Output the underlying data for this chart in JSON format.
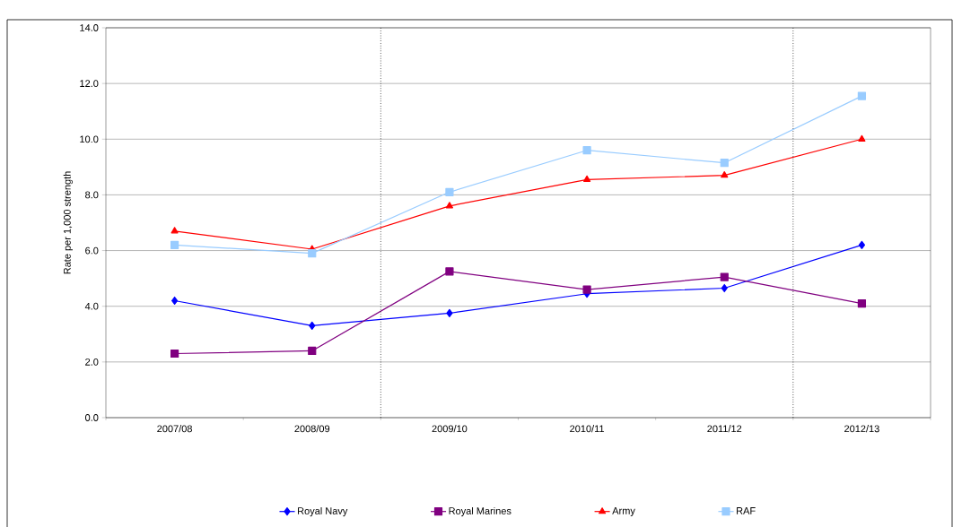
{
  "chart_data": {
    "type": "line",
    "ylabel": "Rate per 1,000 strength",
    "categories": [
      "2007/08",
      "2008/09",
      "2009/10",
      "2010/11",
      "2011/12",
      "2012/13"
    ],
    "series": [
      {
        "name": "Royal Navy",
        "color": "#0000ff",
        "marker": "diamond",
        "values": [
          4.2,
          3.3,
          3.75,
          4.45,
          4.65,
          6.2
        ]
      },
      {
        "name": "Royal Marines",
        "color": "#800080",
        "marker": "square",
        "values": [
          2.3,
          2.4,
          5.25,
          4.6,
          5.05,
          4.1
        ]
      },
      {
        "name": "Army",
        "color": "#ff0000",
        "marker": "triangle",
        "values": [
          6.7,
          6.05,
          7.6,
          8.55,
          8.7,
          10.0
        ]
      },
      {
        "name": "RAF",
        "color": "#99ccff",
        "marker": "square",
        "values": [
          6.2,
          5.9,
          8.1,
          9.6,
          9.15,
          11.55
        ]
      }
    ],
    "ylim": [
      0,
      14
    ],
    "yticks": [
      {
        "value": 0,
        "label": "0.0"
      },
      {
        "value": 2,
        "label": "2.0"
      },
      {
        "value": 4,
        "label": "4.0"
      },
      {
        "value": 6,
        "label": "6.0"
      },
      {
        "value": 8,
        "label": "8.0"
      },
      {
        "value": 10,
        "label": "10.0"
      },
      {
        "value": 12,
        "label": "12.0"
      },
      {
        "value": 14,
        "label": "14.0"
      }
    ],
    "grid": "y",
    "legend": "bottom",
    "line_style": "solid"
  }
}
